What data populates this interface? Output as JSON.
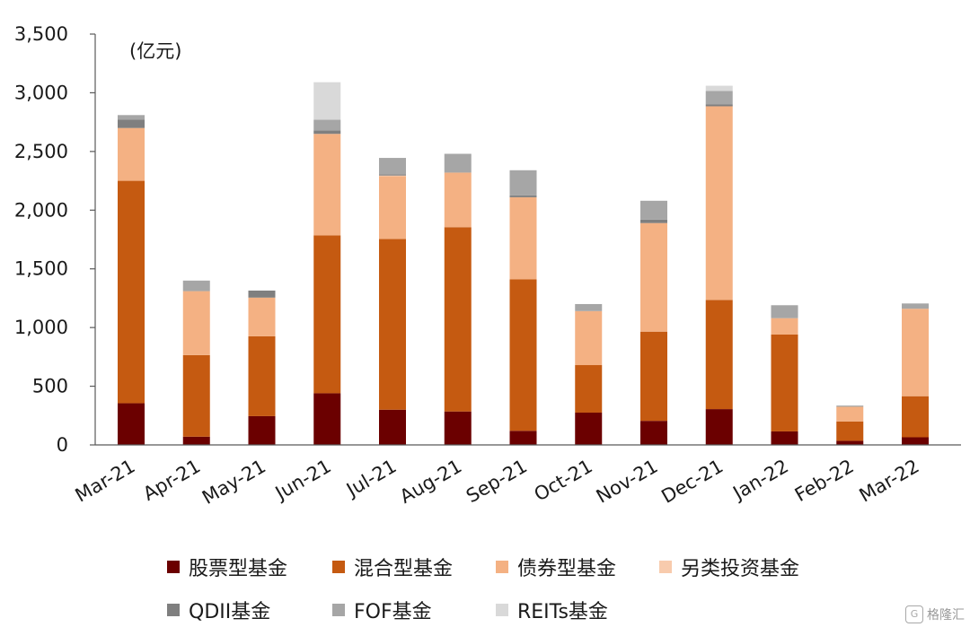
{
  "chart_data": {
    "type": "bar",
    "stacked": true,
    "unit_label": "(亿元)",
    "categories": [
      "Mar-21",
      "Apr-21",
      "May-21",
      "Jun-21",
      "Jul-21",
      "Aug-21",
      "Sep-21",
      "Oct-21",
      "Nov-21",
      "Dec-21",
      "Jan-22",
      "Feb-22",
      "Mar-22"
    ],
    "ylim": [
      0,
      3500
    ],
    "yticks": [
      0,
      500,
      1000,
      1500,
      2000,
      2500,
      3000,
      3500
    ],
    "ytick_labels": [
      "0",
      "500",
      "1,000",
      "1,500",
      "2,000",
      "2,500",
      "3,000",
      "3,500"
    ],
    "grid": false,
    "legend_position": "bottom",
    "series": [
      {
        "name": "股票型基金",
        "color": "#6b0000",
        "values": [
          355,
          70,
          245,
          440,
          300,
          285,
          120,
          275,
          205,
          305,
          115,
          35,
          65
        ]
      },
      {
        "name": "混合型基金",
        "color": "#c55a11",
        "values": [
          1895,
          695,
          680,
          1345,
          1455,
          1570,
          1290,
          405,
          760,
          930,
          825,
          165,
          350
        ]
      },
      {
        "name": "债券型基金",
        "color": "#f4b183",
        "values": [
          450,
          545,
          330,
          865,
          535,
          465,
          700,
          460,
          925,
          1650,
          140,
          125,
          745
        ]
      },
      {
        "name": "另类投资基金",
        "color": "#f8cbad",
        "values": [
          0,
          0,
          0,
          0,
          5,
          0,
          0,
          0,
          0,
          0,
          0,
          0,
          0
        ]
      },
      {
        "name": "QDII基金",
        "color": "#7f7f7f",
        "values": [
          70,
          0,
          60,
          30,
          10,
          0,
          15,
          0,
          30,
          15,
          0,
          0,
          0
        ]
      },
      {
        "name": "FOF基金",
        "color": "#a6a6a6",
        "values": [
          40,
          90,
          0,
          90,
          140,
          160,
          215,
          60,
          160,
          115,
          110,
          10,
          45
        ]
      },
      {
        "name": "REITs基金",
        "color": "#d9d9d9",
        "values": [
          0,
          0,
          0,
          320,
          0,
          0,
          0,
          0,
          0,
          45,
          0,
          0,
          0
        ]
      }
    ]
  },
  "watermark": {
    "text": "格隆汇",
    "icon": "G"
  }
}
